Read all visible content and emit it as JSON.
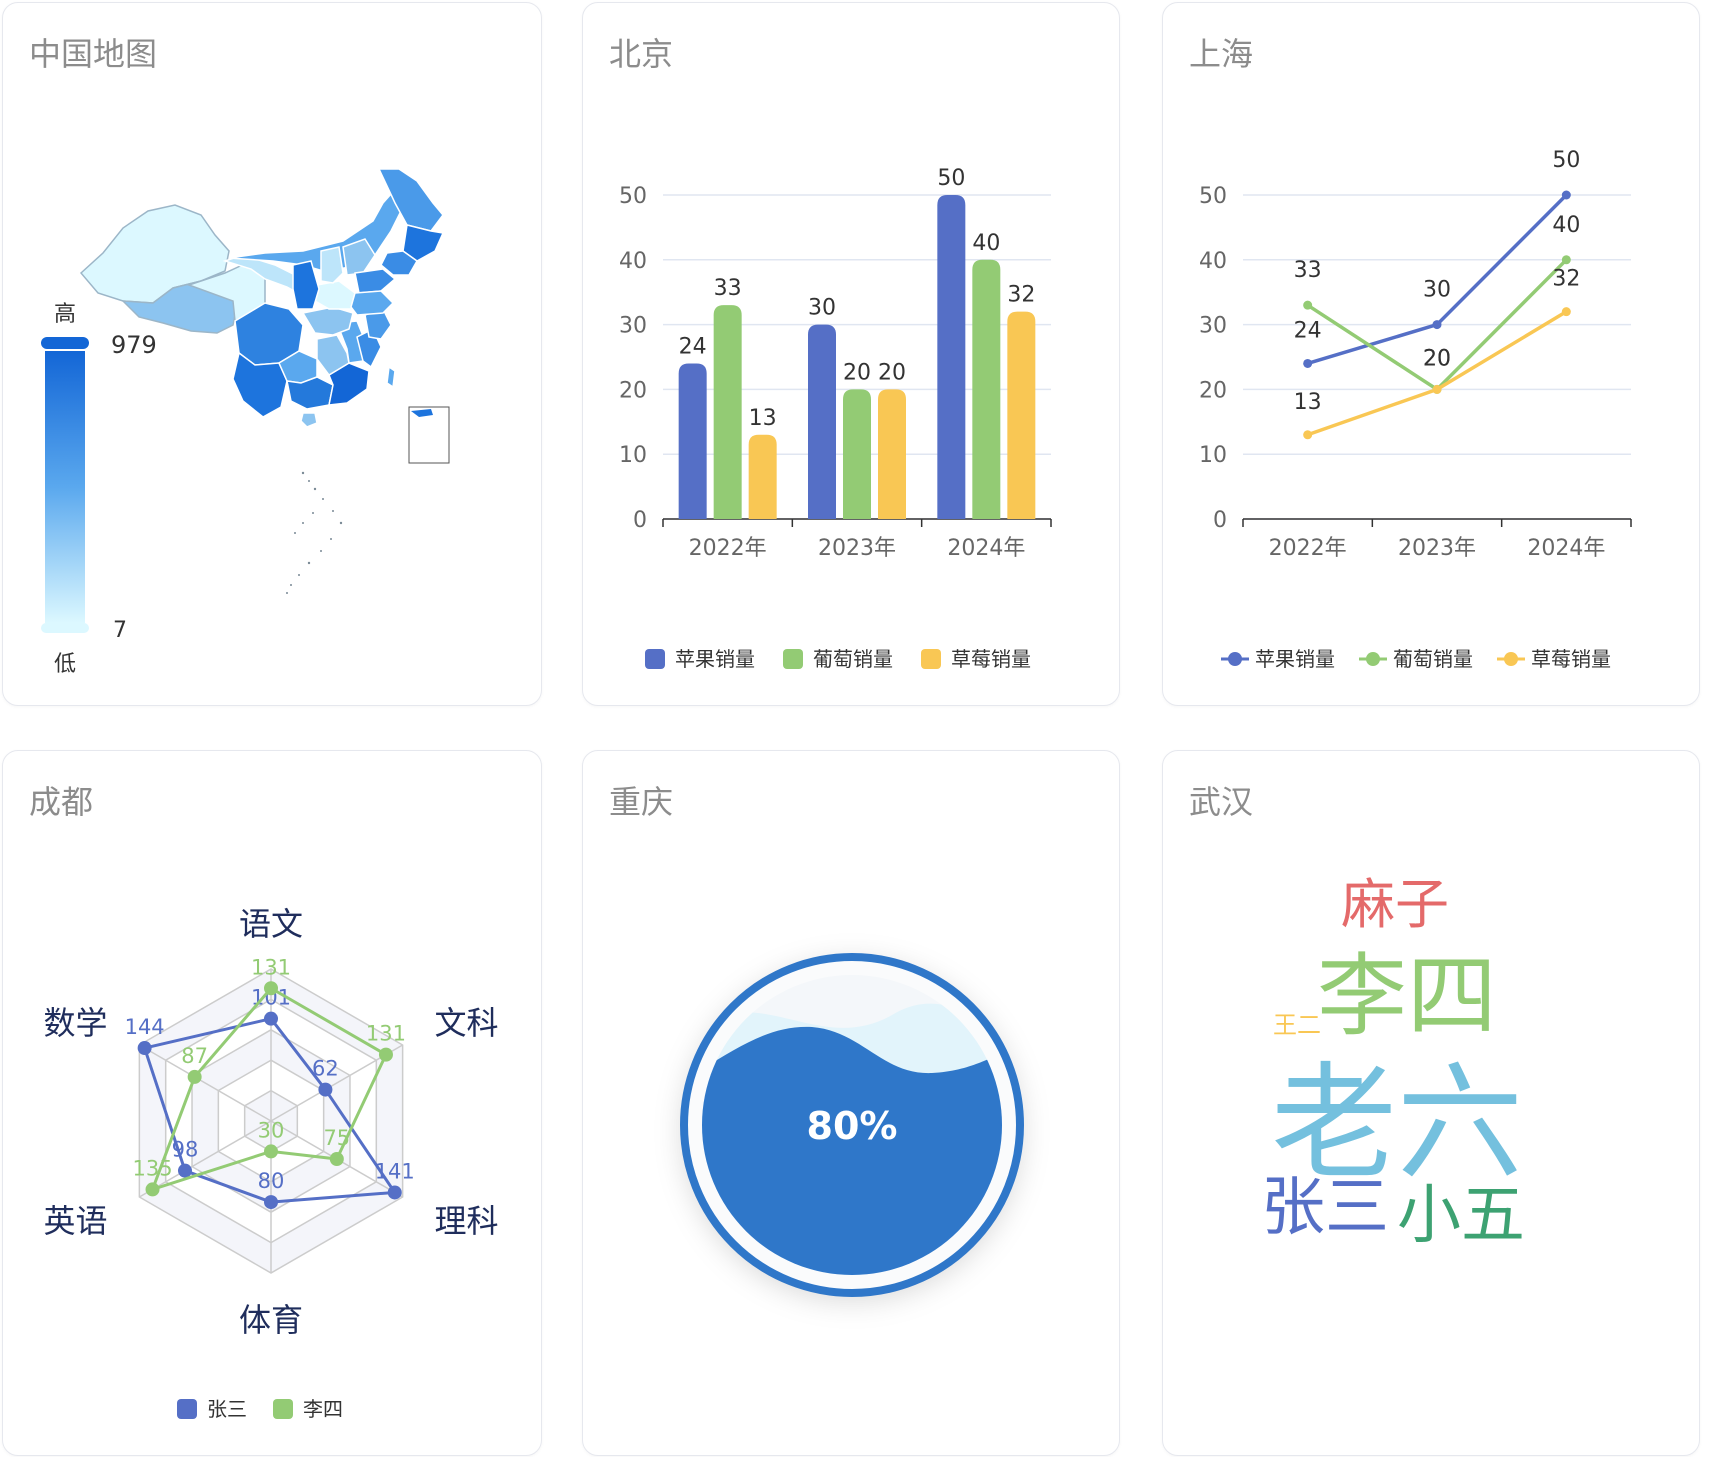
{
  "cards": [
    {
      "title": "中国地图"
    },
    {
      "title": "北京"
    },
    {
      "title": "上海"
    },
    {
      "title": "成都"
    },
    {
      "title": "重庆"
    },
    {
      "title": "武汉"
    }
  ],
  "map": {
    "visual_map": {
      "high_label": "高",
      "low_label": "低",
      "max": 979,
      "min": 7,
      "color_high": "#1366d6",
      "color_low": "#dcf8ff"
    }
  },
  "chart_data": [
    {
      "type": "bar",
      "categories": [
        "2022年",
        "2023年",
        "2024年"
      ],
      "series": [
        {
          "name": "苹果销量",
          "values": [
            24,
            30,
            50
          ],
          "color": "#556fc6"
        },
        {
          "name": "葡萄销量",
          "values": [
            33,
            20,
            40
          ],
          "color": "#93cb74"
        },
        {
          "name": "草莓销量",
          "values": [
            13,
            20,
            32
          ],
          "color": "#f9c754"
        }
      ],
      "ylim": [
        0,
        50
      ],
      "yticks": [
        0,
        10,
        20,
        30,
        40,
        50
      ],
      "grid": true,
      "legend": "bottom"
    },
    {
      "type": "line",
      "categories": [
        "2022年",
        "2023年",
        "2024年"
      ],
      "series": [
        {
          "name": "苹果销量",
          "values": [
            24,
            30,
            50
          ],
          "color": "#556fc6"
        },
        {
          "name": "葡萄销量",
          "values": [
            33,
            20,
            40
          ],
          "color": "#93cb74"
        },
        {
          "name": "草莓销量",
          "values": [
            13,
            20,
            32
          ],
          "color": "#f9c754"
        }
      ],
      "ylim": [
        0,
        50
      ],
      "yticks": [
        0,
        10,
        20,
        30,
        40,
        50
      ],
      "grid": true,
      "legend": "bottom"
    },
    {
      "type": "radar",
      "indicators": [
        "语文",
        "文科",
        "理科",
        "体育",
        "英语",
        "数学"
      ],
      "max": 150,
      "series": [
        {
          "name": "张三",
          "values": [
            101,
            62,
            141,
            80,
            98,
            144
          ],
          "color": "#556fc6"
        },
        {
          "name": "李四",
          "values": [
            131,
            131,
            75,
            30,
            135,
            87
          ],
          "color": "#93cb74"
        }
      ],
      "legend": "bottom"
    },
    {
      "type": "gauge",
      "value": 0.8,
      "label": "80%",
      "color": "#2f77c9"
    },
    {
      "type": "wordcloud",
      "words": [
        {
          "text": "麻子",
          "weight": 3,
          "color": "#e46a6a"
        },
        {
          "text": "李四",
          "weight": 5,
          "color": "#93cb74"
        },
        {
          "text": "王二",
          "weight": 1,
          "color": "#f9c754"
        },
        {
          "text": "老六",
          "weight": 7,
          "color": "#74c0de"
        },
        {
          "text": "张三",
          "weight": 4,
          "color": "#556fc6"
        },
        {
          "text": "小五",
          "weight": 4,
          "color": "#3da272"
        }
      ]
    }
  ]
}
